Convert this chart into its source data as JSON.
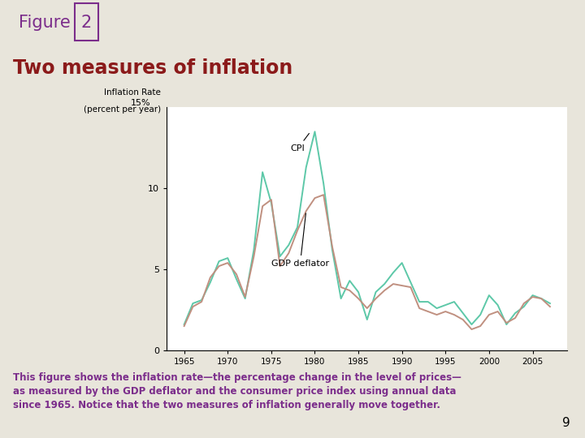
{
  "title": "Two measures of inflation",
  "ylabel_line1": "Inflation Rate",
  "ylabel_line2": "(percent per year)",
  "outer_bg_color": "#d9d6cc",
  "plot_bg_color": "#ffffff",
  "slide_bg_color": "#e8e5db",
  "title_color": "#8b1a1a",
  "figure_label_color": "#7b2d8b",
  "caption_color": "#7b2d8b",
  "cpi_color": "#5dc8a8",
  "gdp_color": "#c09080",
  "years": [
    1965,
    1966,
    1967,
    1968,
    1969,
    1970,
    1971,
    1972,
    1973,
    1974,
    1975,
    1976,
    1977,
    1978,
    1979,
    1980,
    1981,
    1982,
    1983,
    1984,
    1985,
    1986,
    1987,
    1988,
    1989,
    1990,
    1991,
    1992,
    1993,
    1994,
    1995,
    1996,
    1997,
    1998,
    1999,
    2000,
    2001,
    2002,
    2003,
    2004,
    2005,
    2006,
    2007
  ],
  "cpi": [
    1.6,
    2.9,
    3.1,
    4.2,
    5.5,
    5.7,
    4.4,
    3.2,
    6.2,
    11.0,
    9.1,
    5.8,
    6.5,
    7.6,
    11.3,
    13.5,
    10.3,
    6.2,
    3.2,
    4.3,
    3.6,
    1.9,
    3.6,
    4.1,
    4.8,
    5.4,
    4.2,
    3.0,
    3.0,
    2.6,
    2.8,
    3.0,
    2.3,
    1.6,
    2.2,
    3.4,
    2.8,
    1.6,
    2.3,
    2.7,
    3.4,
    3.2,
    2.9
  ],
  "gdp_deflator": [
    1.5,
    2.7,
    3.0,
    4.5,
    5.2,
    5.4,
    4.7,
    3.3,
    5.8,
    8.9,
    9.3,
    5.2,
    6.0,
    7.4,
    8.6,
    9.4,
    9.6,
    6.4,
    3.9,
    3.7,
    3.2,
    2.6,
    3.2,
    3.7,
    4.1,
    4.0,
    3.9,
    2.6,
    2.4,
    2.2,
    2.4,
    2.2,
    1.9,
    1.3,
    1.5,
    2.2,
    2.4,
    1.7,
    2.0,
    2.9,
    3.3,
    3.2,
    2.7
  ],
  "xlim": [
    1963,
    2009
  ],
  "ylim": [
    0,
    15
  ],
  "yticks": [
    0,
    5,
    10
  ],
  "ytick_labels": [
    "0",
    "5",
    "10"
  ],
  "y15_label": "15%",
  "xticks": [
    1965,
    1970,
    1975,
    1980,
    1985,
    1990,
    1995,
    2000,
    2005
  ],
  "caption": "This figure shows the inflation rate—the percentage change in the level of prices—\nas measured by the GDP deflator and the consumer price index using annual data\nsince 1965. Notice that the two measures of inflation generally move together.",
  "page_num": "9"
}
